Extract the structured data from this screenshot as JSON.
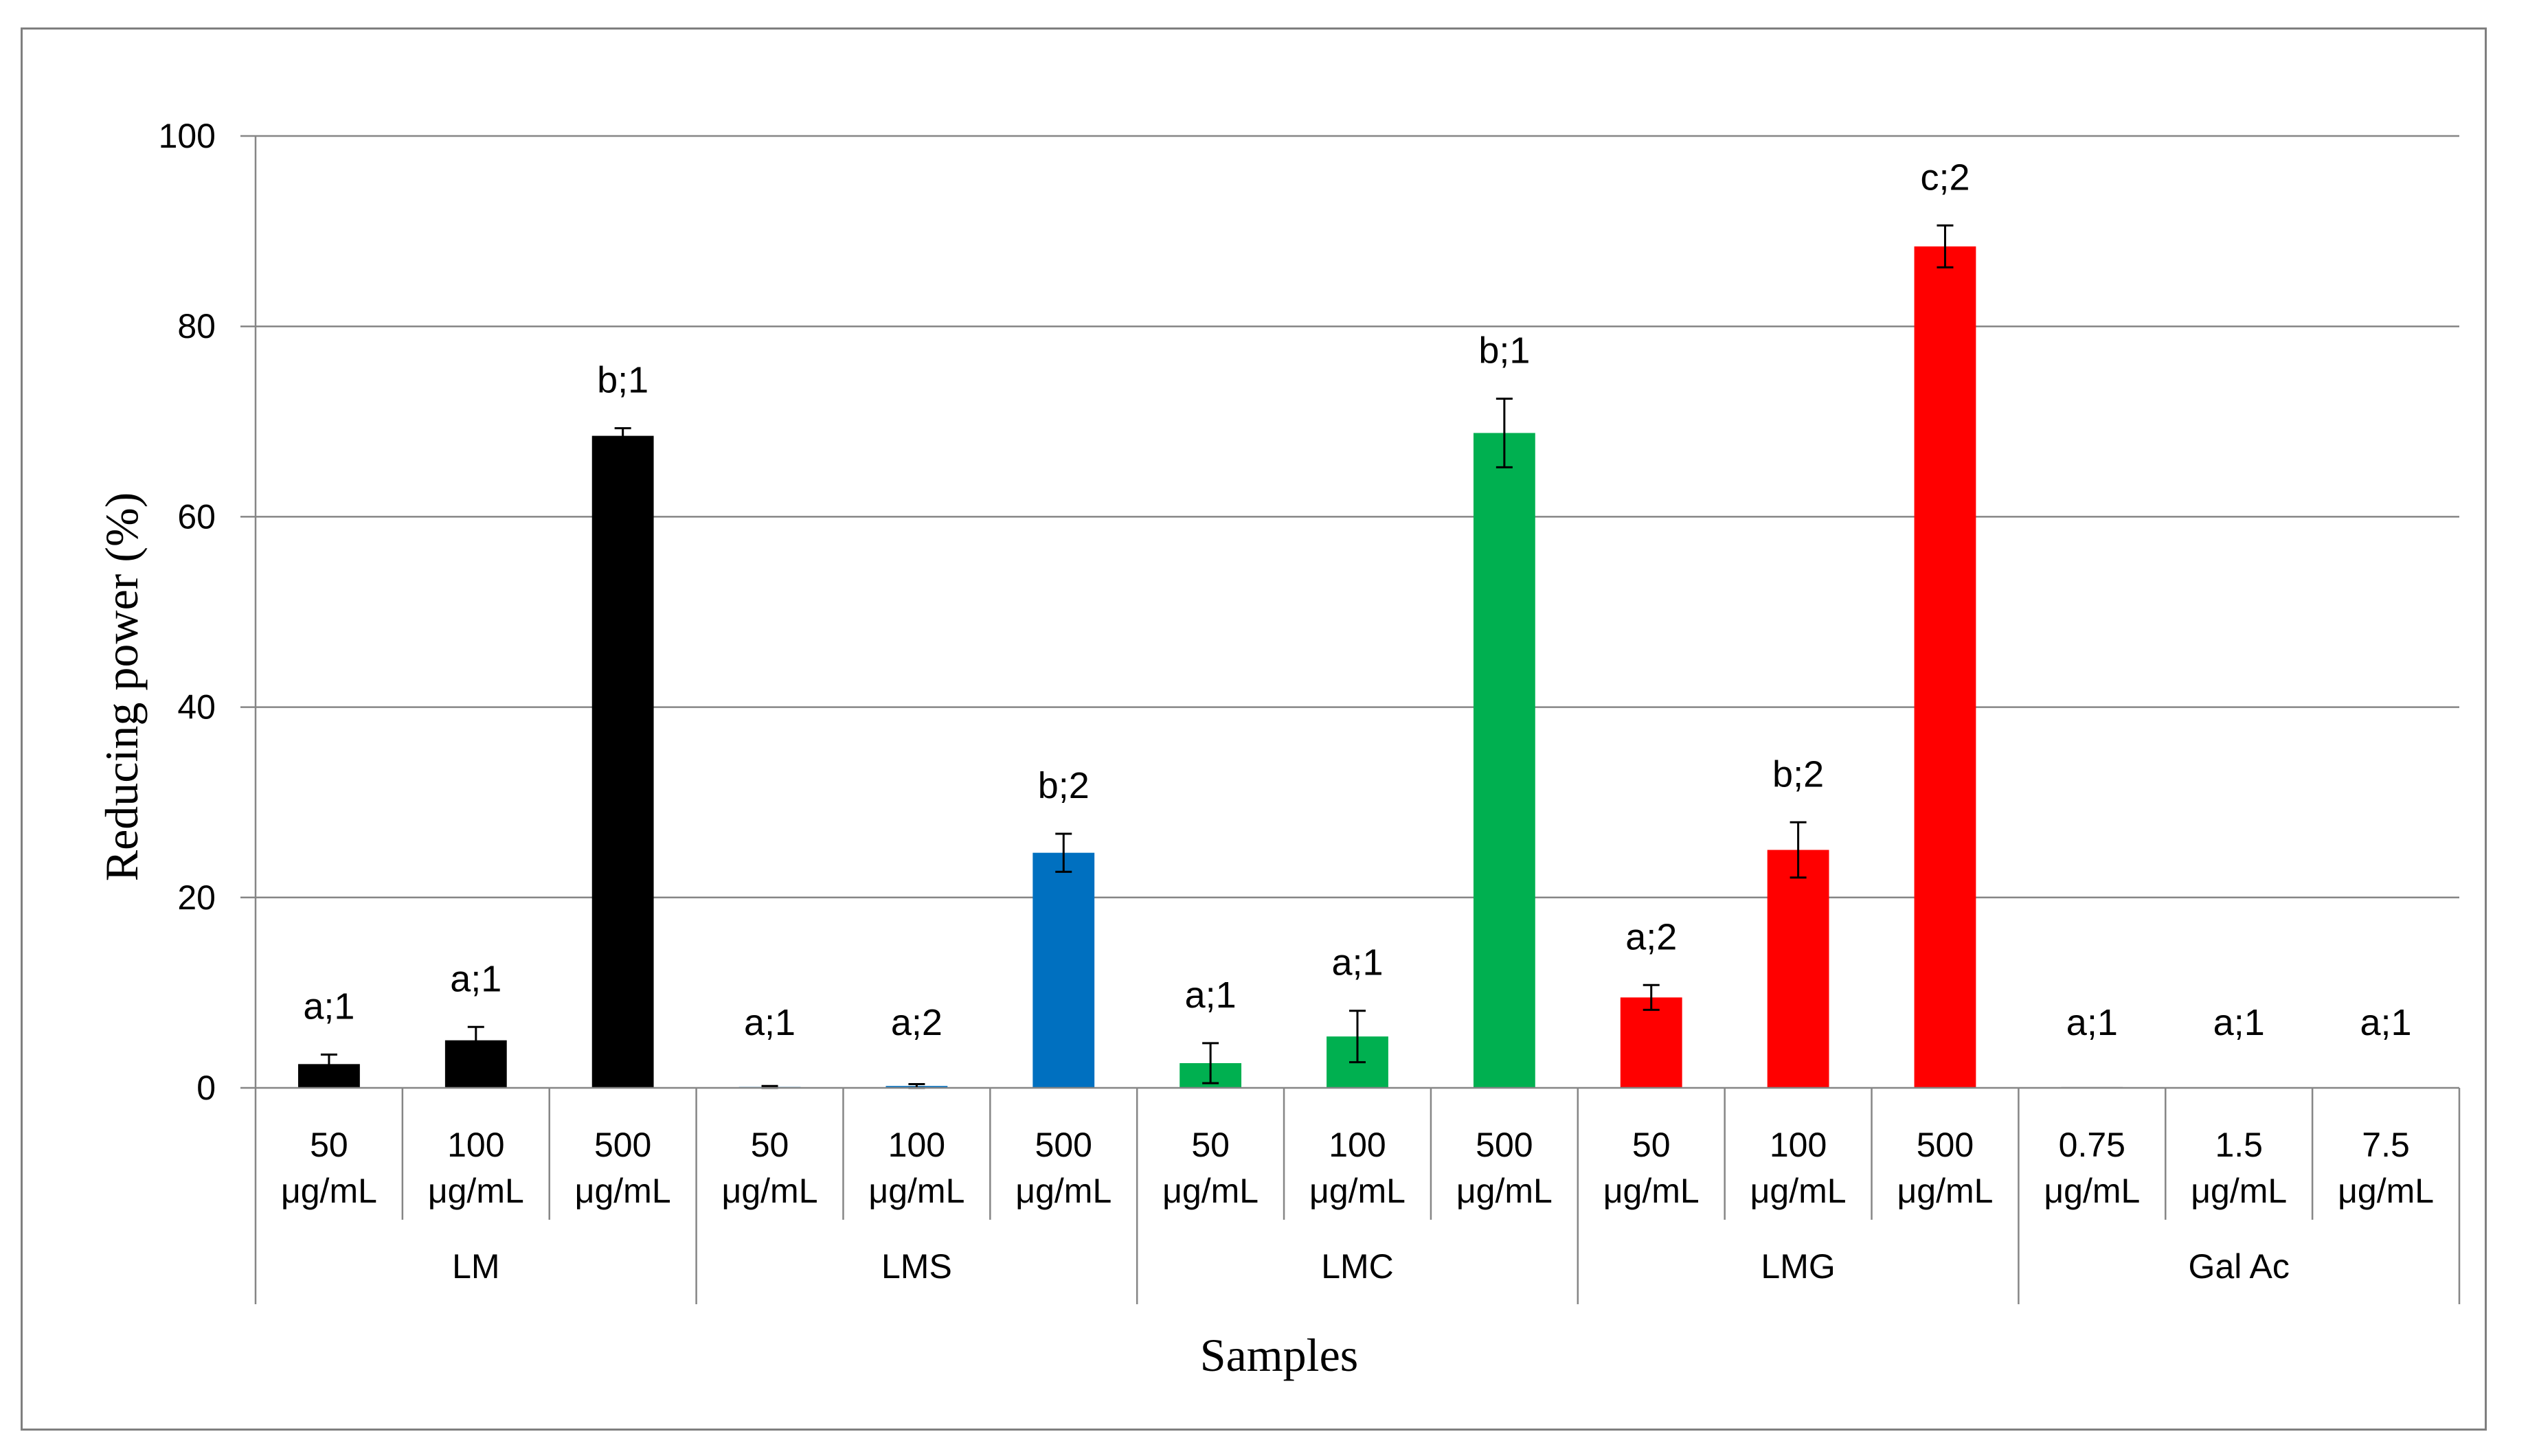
{
  "chart_data": {
    "type": "bar",
    "title": "",
    "xlabel": "Samples",
    "ylabel": "Reducing power (%)",
    "ylim": [
      0,
      100
    ],
    "yticks": [
      "0",
      "20",
      "40",
      "60",
      "80",
      "100"
    ],
    "grid": true,
    "groups": [
      {
        "name": "LM",
        "color": "#000000",
        "bars": [
          {
            "conc_value": "50",
            "conc_unit": "μg/mL",
            "value": 2.5,
            "error": 1.0,
            "label": "a;1"
          },
          {
            "conc_value": "100",
            "conc_unit": "μg/mL",
            "value": 5.0,
            "error": 1.4,
            "label": "a;1"
          },
          {
            "conc_value": "500",
            "conc_unit": "μg/mL",
            "value": 68.5,
            "error": 0.8,
            "label": "b;1"
          }
        ]
      },
      {
        "name": "LMS",
        "color": "#0070c0",
        "bars": [
          {
            "conc_value": "50",
            "conc_unit": "μg/mL",
            "value": 0.1,
            "error": 0.1,
            "label": "a;1"
          },
          {
            "conc_value": "100",
            "conc_unit": "μg/mL",
            "value": 0.2,
            "error": 0.2,
            "label": "a;2"
          },
          {
            "conc_value": "500",
            "conc_unit": "μg/mL",
            "value": 24.7,
            "error": 2.0,
            "label": "b;2"
          }
        ]
      },
      {
        "name": "LMC",
        "color": "#00b050",
        "bars": [
          {
            "conc_value": "50",
            "conc_unit": "μg/mL",
            "value": 2.6,
            "error": 2.1,
            "label": "a;1"
          },
          {
            "conc_value": "100",
            "conc_unit": "μg/mL",
            "value": 5.4,
            "error": 2.7,
            "label": "a;1"
          },
          {
            "conc_value": "500",
            "conc_unit": "μg/mL",
            "value": 68.8,
            "error": 3.6,
            "label": "b;1"
          }
        ]
      },
      {
        "name": "LMG",
        "color": "#ff0000",
        "bars": [
          {
            "conc_value": "50",
            "conc_unit": "μg/mL",
            "value": 9.5,
            "error": 1.3,
            "label": "a;2"
          },
          {
            "conc_value": "100",
            "conc_unit": "μg/mL",
            "value": 25.0,
            "error": 2.9,
            "label": "b;2"
          },
          {
            "conc_value": "500",
            "conc_unit": "μg/mL",
            "value": 88.4,
            "error": 2.2,
            "label": "c;2"
          }
        ]
      },
      {
        "name": "Gal Ac",
        "color": "#a5a5a5",
        "bars": [
          {
            "conc_value": "0.75",
            "conc_unit": "μg/mL",
            "value": 0.1,
            "error": 0,
            "label": "a;1"
          },
          {
            "conc_value": "1.5",
            "conc_unit": "μg/mL",
            "value": 0,
            "error": 0,
            "label": "a;1"
          },
          {
            "conc_value": "7.5",
            "conc_unit": "μg/mL",
            "value": 0,
            "error": 0,
            "label": "a;1"
          }
        ]
      }
    ]
  }
}
